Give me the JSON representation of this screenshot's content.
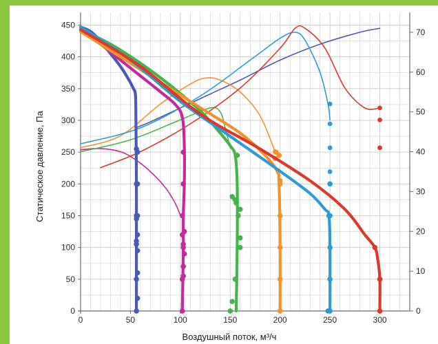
{
  "theme": {
    "frame_color": "#8dc63f",
    "grid_color": "#cfcfcf",
    "axis_color": "#6b6b6b"
  },
  "chart_data": {
    "type": "line",
    "title": "",
    "xlabel": "Воздушный поток, м³/ч",
    "ylabel": "Статическое давление, Па",
    "y2label": "",
    "xlim": [
      0,
      330
    ],
    "ylim": [
      0,
      470
    ],
    "y2lim": [
      0,
      75
    ],
    "xticks": [
      "0",
      "50",
      "100",
      "150",
      "200",
      "250",
      "300"
    ],
    "yticks": [
      "0",
      "50",
      "100",
      "150",
      "200",
      "250",
      "300",
      "350",
      "400",
      "450"
    ],
    "y2ticks": [
      "0",
      "10",
      "20",
      "30",
      "40",
      "50",
      "60",
      "70"
    ],
    "grid": true,
    "series": [
      {
        "color": "#4a5ab4",
        "axis": "left",
        "kind": "pressure",
        "x": [
          0,
          10,
          20,
          30,
          40,
          48,
          53,
          55,
          55.5,
          56,
          56,
          56,
          56
        ],
        "y": [
          447,
          440,
          425,
          405,
          385,
          365,
          350,
          340,
          300,
          200,
          100,
          50,
          0
        ],
        "markers_x": [
          56,
          57,
          56,
          57,
          57,
          56,
          56,
          57,
          56,
          57,
          56,
          57,
          56,
          57,
          56
        ],
        "markers_y": [
          0,
          20,
          50,
          60,
          95,
          105,
          110,
          120,
          145,
          150,
          150,
          200,
          200,
          250,
          255
        ]
      },
      {
        "color": "#c42a9c",
        "axis": "left",
        "kind": "pressure",
        "x": [
          0,
          20,
          40,
          60,
          80,
          95,
          102,
          104,
          104,
          103,
          103,
          102
        ],
        "y": [
          440,
          420,
          395,
          370,
          345,
          325,
          305,
          260,
          200,
          150,
          100,
          0
        ],
        "markers_x": [
          102,
          102,
          103,
          103,
          104,
          103,
          103,
          102,
          104,
          102,
          103,
          103
        ],
        "markers_y": [
          0,
          50,
          55,
          70,
          90,
          100,
          105,
          120,
          125,
          150,
          200,
          250
        ]
      },
      {
        "color": "#45b44a",
        "axis": "left",
        "kind": "pressure",
        "x": [
          0,
          30,
          60,
          90,
          120,
          140,
          150,
          155,
          157,
          157,
          156
        ],
        "y": [
          443,
          420,
          390,
          355,
          315,
          280,
          260,
          245,
          200,
          100,
          0
        ],
        "markers_x": [
          150,
          152,
          155,
          160,
          160,
          158,
          156,
          155,
          152,
          157,
          160
        ],
        "markers_y": [
          0,
          15,
          50,
          100,
          115,
          150,
          170,
          175,
          180,
          245,
          160
        ],
        "markers_note": ""
      },
      {
        "color": "#f0932b",
        "axis": "left",
        "kind": "pressure",
        "x": [
          0,
          40,
          80,
          120,
          160,
          185,
          197,
          199,
          200,
          200
        ],
        "y": [
          440,
          400,
          360,
          320,
          280,
          245,
          220,
          200,
          100,
          0
        ],
        "markers_x": [
          200,
          200,
          200,
          200,
          200,
          199,
          196,
          200,
          195
        ],
        "markers_y": [
          0,
          50,
          100,
          150,
          200,
          245,
          250,
          205,
          240
        ]
      },
      {
        "color": "#2f9bd6",
        "axis": "left",
        "kind": "pressure",
        "x": [
          0,
          50,
          100,
          150,
          200,
          230,
          245,
          249,
          250,
          250
        ],
        "y": [
          447,
          395,
          330,
          275,
          220,
          185,
          160,
          150,
          100,
          0
        ],
        "markers_x": [
          248,
          250,
          250,
          250,
          250,
          249,
          250
        ],
        "markers_y": [
          0,
          50,
          100,
          150,
          200,
          150,
          0
        ]
      },
      {
        "color": "#d93a2b",
        "axis": "left",
        "kind": "pressure",
        "x": [
          0,
          60,
          120,
          180,
          230,
          265,
          285,
          295,
          298,
          300,
          300
        ],
        "y": [
          443,
          385,
          310,
          255,
          205,
          160,
          120,
          100,
          80,
          50,
          0
        ],
        "markers_x": [
          295,
          300,
          300,
          300
        ],
        "markers_y": [
          100,
          50,
          0,
          0
        ]
      },
      {
        "color": "#4a5ab4",
        "axis": "right",
        "kind": "power",
        "x": [
          55,
          70,
          100,
          130,
          160,
          200,
          240,
          280,
          300
        ],
        "y2": [
          46,
          47.5,
          51,
          54.5,
          58,
          63,
          67,
          70,
          71
        ]
      },
      {
        "color": "#c42a9c",
        "axis": "right",
        "kind": "power",
        "x": [
          0,
          20,
          40,
          55,
          70,
          85,
          95,
          100
        ],
        "y2": [
          40.5,
          40.8,
          40,
          38,
          35,
          31,
          27,
          24
        ]
      },
      {
        "color": "#45b44a",
        "axis": "right",
        "kind": "power",
        "x": [
          0,
          50,
          100,
          130,
          140,
          145,
          150
        ],
        "y2": [
          40,
          43,
          48,
          51,
          50,
          46,
          41
        ]
      },
      {
        "color": "#f0932b",
        "axis": "right",
        "kind": "power",
        "x": [
          0,
          40,
          80,
          110,
          125,
          140,
          160,
          180,
          195
        ],
        "y2": [
          41,
          44,
          52,
          57,
          58.5,
          58,
          55,
          49,
          40
        ],
        "markers_x": [
          195
        ],
        "markers_y2": [
          40
        ]
      },
      {
        "color": "#2f9bd6",
        "axis": "right",
        "kind": "power",
        "x": [
          0,
          60,
          120,
          170,
          200,
          215,
          225,
          240,
          248,
          250
        ],
        "y2": [
          42,
          46,
          54,
          63,
          68.5,
          70,
          68,
          60,
          52,
          48
        ],
        "markers_x": [
          250,
          250,
          250,
          250
        ],
        "markers_y2": [
          52,
          47,
          41,
          35
        ]
      },
      {
        "color": "#d93a2b",
        "axis": "right",
        "kind": "power",
        "x": [
          20,
          60,
          110,
          160,
          200,
          215,
          225,
          245,
          265,
          285,
          300
        ],
        "y2": [
          36,
          40,
          47,
          56,
          66,
          71,
          71,
          66,
          56,
          51,
          51
        ],
        "markers_x": [
          300,
          300,
          300
        ],
        "markers_y2": [
          51,
          48,
          41
        ]
      }
    ]
  }
}
